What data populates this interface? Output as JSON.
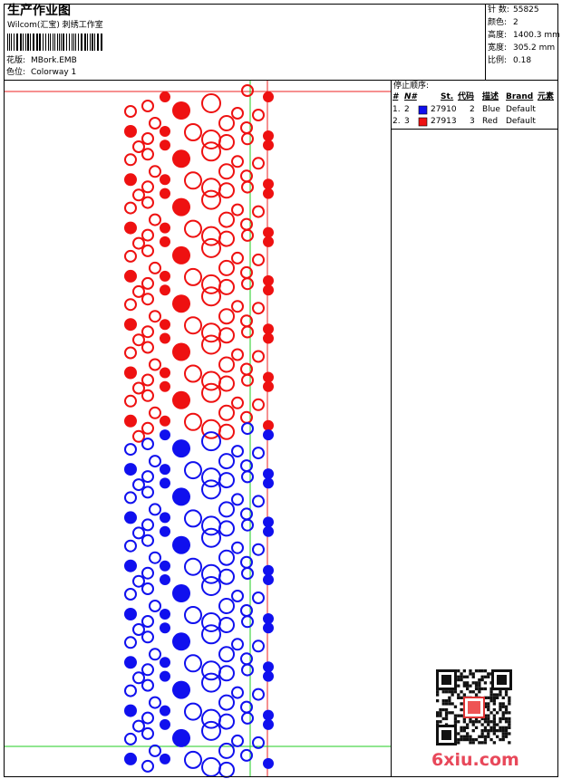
{
  "header": {
    "title": "生产作业图",
    "company": "Wilcom(汇宝) 刺绣工作室",
    "design_label": "花版:",
    "design": "MBork.EMB",
    "colorway_label": "色位:",
    "colorway": "Colorway 1"
  },
  "info": [
    {
      "label": "针 数:",
      "value": "55825"
    },
    {
      "label": "颜色:",
      "value": "2"
    },
    {
      "label": "高度:",
      "value": "1400.3 mm"
    },
    {
      "label": "宽度:",
      "value": "305.2 mm"
    },
    {
      "label": "比例:",
      "value": "0.18"
    }
  ],
  "stop_sequence": {
    "title": "停止顺序:",
    "columns": [
      "#",
      "N#",
      "St.",
      "代码",
      "描述",
      "Brand",
      "元素"
    ],
    "rows": [
      {
        "index": "1.",
        "needle": "2",
        "color": "#1010ee",
        "stitches": "27910",
        "code": "2",
        "description": "Blue",
        "brand": "Default"
      },
      {
        "index": "2.",
        "needle": "3",
        "color": "#ee1111",
        "stitches": "27913",
        "code": "3",
        "description": "Red",
        "brand": "Default"
      }
    ]
  },
  "watermark": "6xiu.com"
}
